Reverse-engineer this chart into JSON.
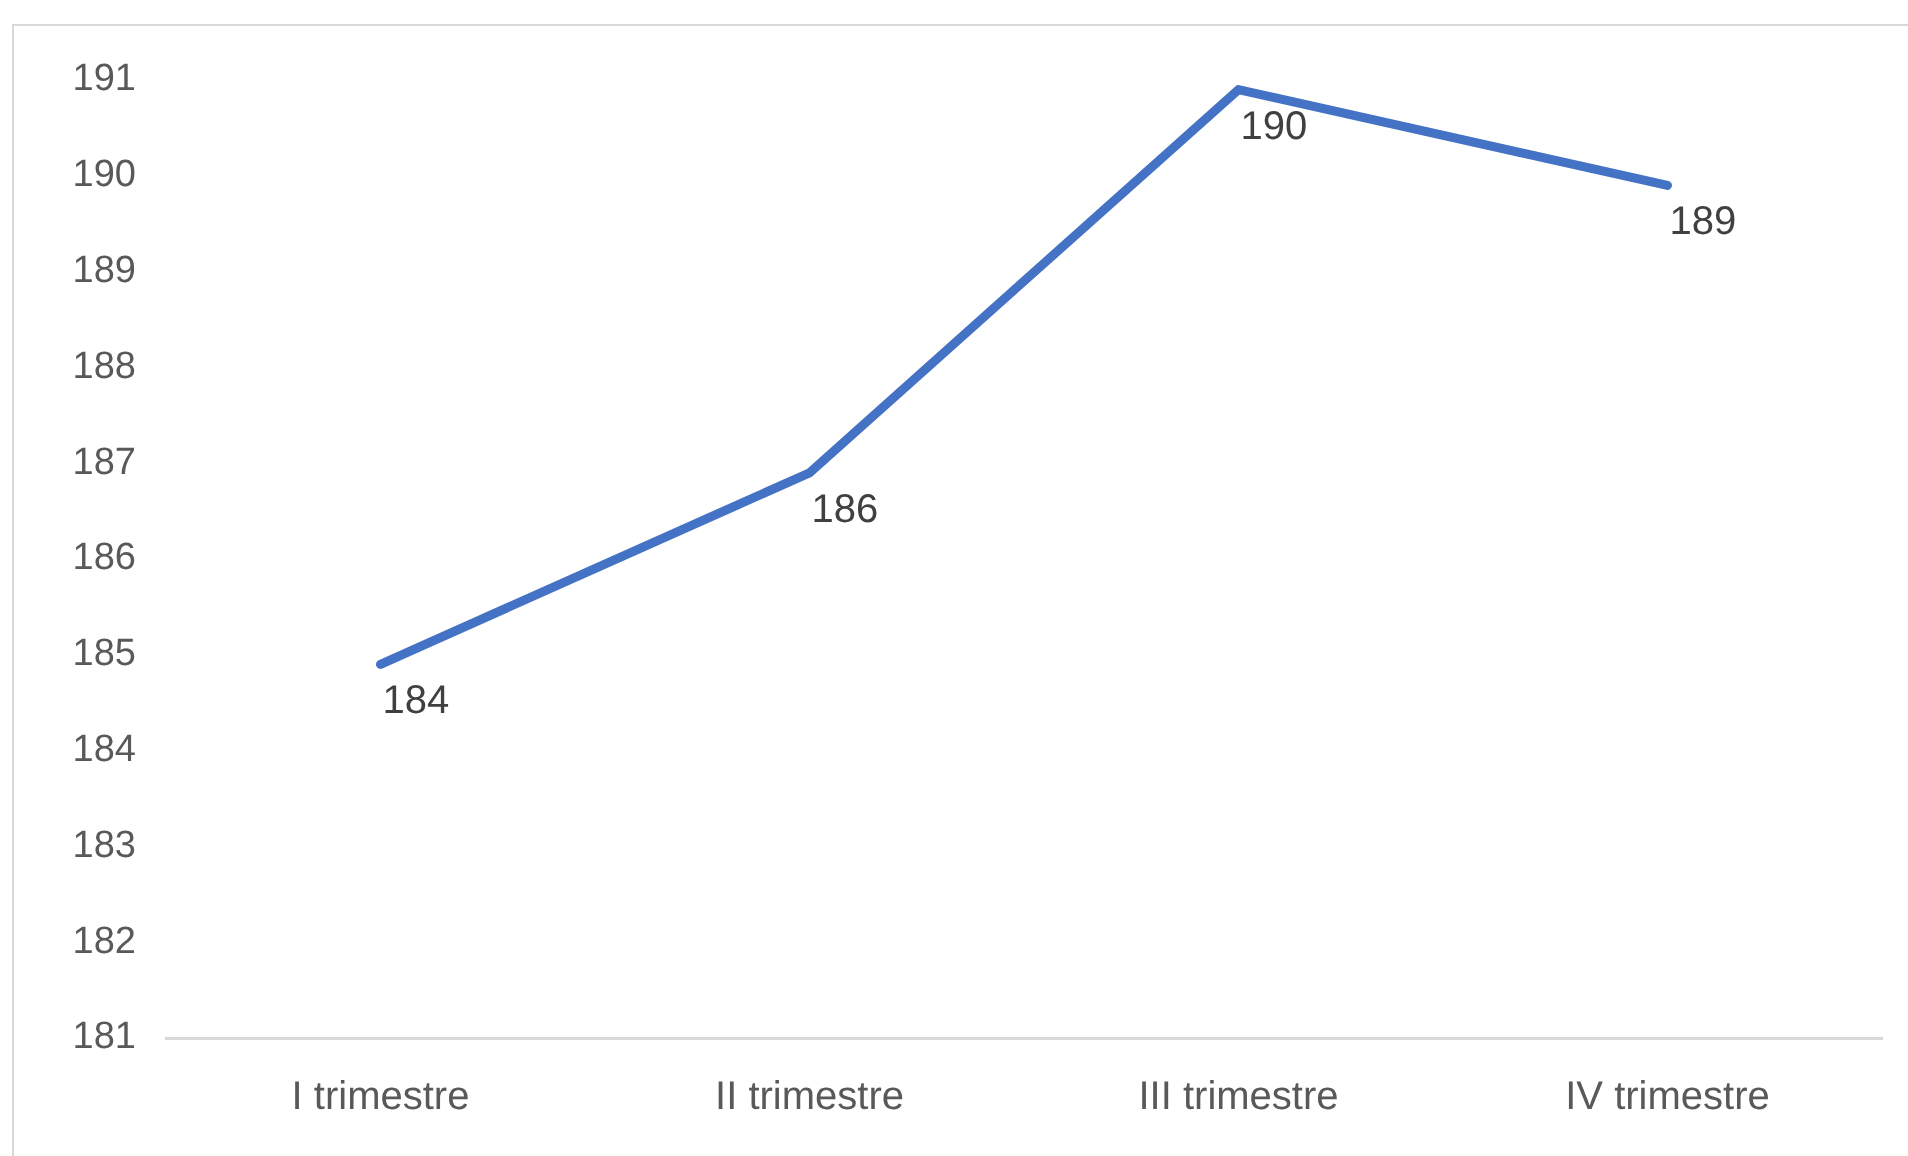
{
  "chart_data": {
    "type": "line",
    "categories": [
      "I trimestre",
      "II trimestre",
      "III trimestre",
      "IV trimestre"
    ],
    "series": [
      {
        "color": "#4472c4",
        "values": [
          184.4,
          186.4,
          190.4,
          189.4
        ],
        "value_labels": [
          "184",
          "186",
          "190",
          "189"
        ]
      }
    ],
    "ylim": [
      180.5,
      190.5
    ],
    "yticks": [
      {
        "value": 180.5,
        "label": "181"
      },
      {
        "value": 181.5,
        "label": "182"
      },
      {
        "value": 182.5,
        "label": "183"
      },
      {
        "value": 183.5,
        "label": "184"
      },
      {
        "value": 184.5,
        "label": "185"
      },
      {
        "value": 185.5,
        "label": "186"
      },
      {
        "value": 186.5,
        "label": "187"
      },
      {
        "value": 187.5,
        "label": "188"
      },
      {
        "value": 188.5,
        "label": "189"
      },
      {
        "value": 189.5,
        "label": "190"
      },
      {
        "value": 190.5,
        "label": "191"
      }
    ],
    "grid": false,
    "legend": false,
    "marker": "none",
    "line_style": "solid"
  }
}
